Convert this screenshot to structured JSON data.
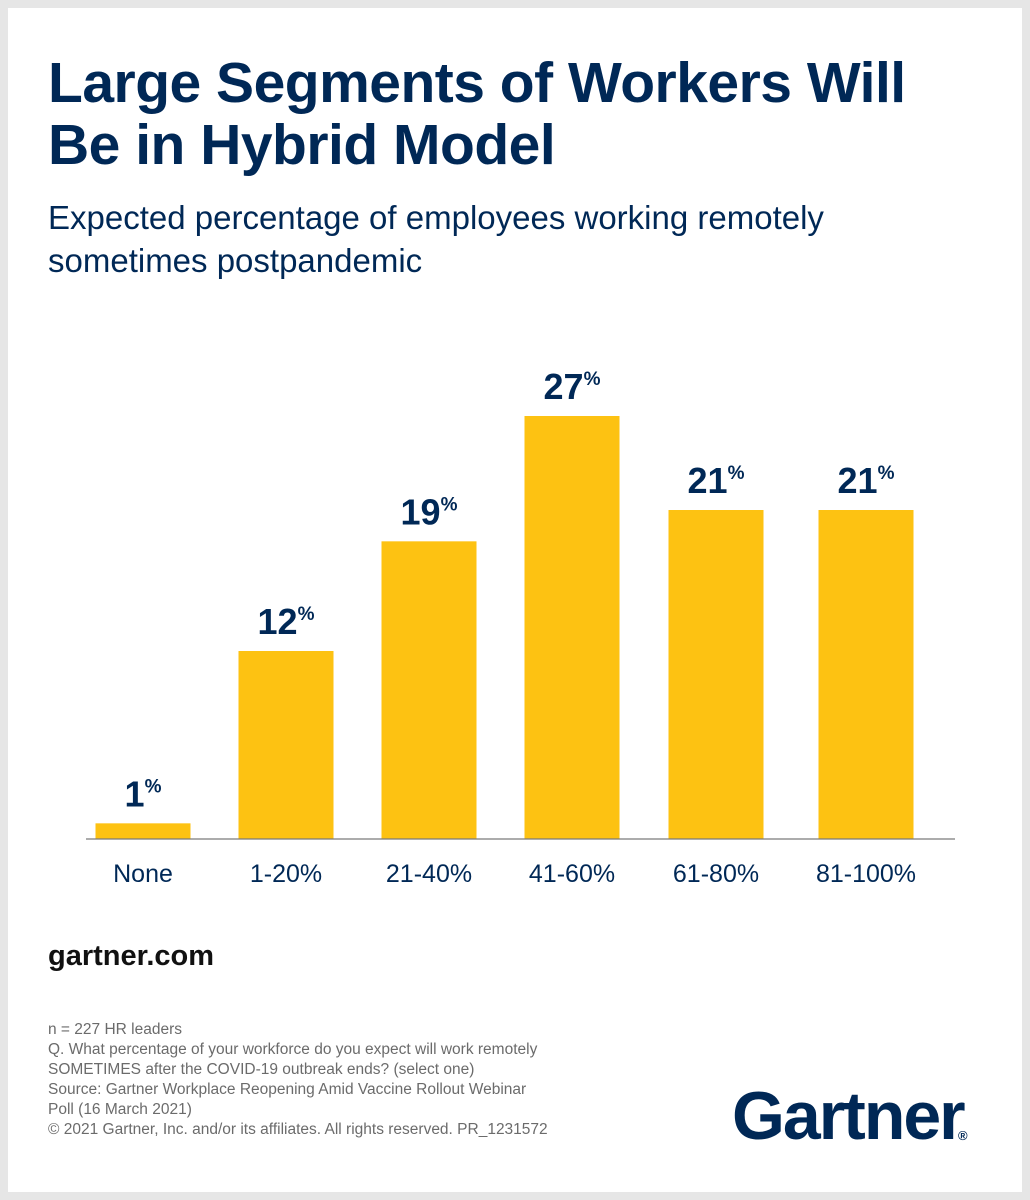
{
  "header": {
    "title": "Large Segments of Workers Will Be in Hybrid Model",
    "subtitle": "Expected percentage of employees working remotely sometimes postpandemic"
  },
  "chart_data": {
    "type": "bar",
    "categories": [
      "None",
      "1-20%",
      "21-40%",
      "41-60%",
      "61-80%",
      "81-100%"
    ],
    "values": [
      1,
      12,
      19,
      27,
      21,
      21
    ],
    "value_labels": [
      "1",
      "12",
      "19",
      "27",
      "21",
      "21"
    ],
    "value_suffix": "%",
    "title": "Expected percentage of employees working remotely sometimes postpandemic",
    "xlabel": "",
    "ylabel": "",
    "ylim": [
      0,
      27
    ],
    "grid": false,
    "legend": "none",
    "bar_color": "#fdc212",
    "label_color": "#002856"
  },
  "footer": {
    "site": "gartner.com",
    "notes": [
      "n = 227 HR leaders",
      "Q. What percentage of your workforce do you expect will work remotely",
      "SOMETIMES after the COVID-19 outbreak ends? (select one)",
      "Source: Gartner Workplace Reopening Amid Vaccine Rollout Webinar",
      "Poll (16 March 2021)",
      "© 2021 Gartner, Inc. and/or its affiliates. All rights reserved. PR_1231572"
    ],
    "logo": "Gartner",
    "logo_mark": "®"
  }
}
